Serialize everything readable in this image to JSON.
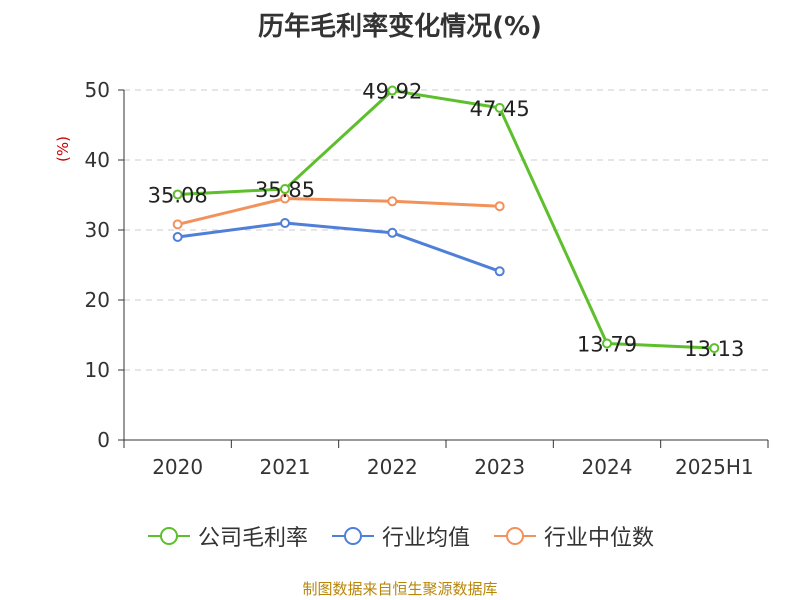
{
  "chart_data": {
    "type": "line",
    "title": "历年毛利率变化情况(%)",
    "ylabel": "(%)",
    "xlabel": "",
    "categories": [
      "2020",
      "2021",
      "2022",
      "2023",
      "2024",
      "2025H1"
    ],
    "ylim": [
      0,
      50
    ],
    "yticks": [
      "0",
      "10",
      "20",
      "30",
      "40",
      "50"
    ],
    "grid": true,
    "legend_position": "bottom",
    "series": [
      {
        "name": "公司毛利率",
        "color": "#5dbf2b",
        "values": [
          35.08,
          35.85,
          49.92,
          47.45,
          13.79,
          13.13
        ],
        "labels": [
          "35.08",
          "35.85",
          "49.92",
          "47.45",
          "13.79",
          "13.13"
        ]
      },
      {
        "name": "行业均值",
        "color": "#4f7fd9",
        "values": [
          29.0,
          31.0,
          29.6,
          24.1,
          null,
          null
        ]
      },
      {
        "name": "行业中位数",
        "color": "#f2915a",
        "values": [
          30.8,
          34.5,
          34.1,
          33.4,
          null,
          null
        ]
      }
    ],
    "source": "制图数据来自恒生聚源数据库"
  }
}
